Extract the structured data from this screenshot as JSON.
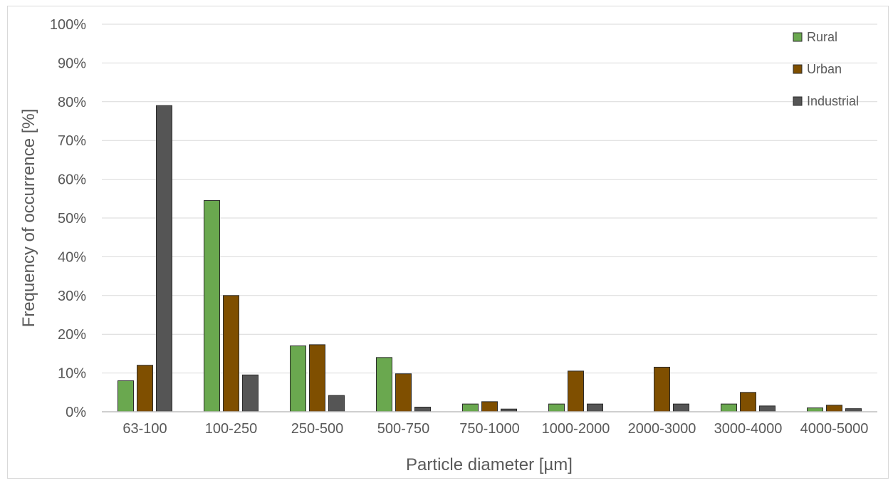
{
  "chart_data": {
    "type": "bar",
    "title": "",
    "xlabel": "Particle diameter [µm]",
    "ylabel": "Frequency of occurrence [%]",
    "ylim": [
      0,
      100
    ],
    "yticks": [
      "0%",
      "10%",
      "20%",
      "30%",
      "40%",
      "50%",
      "60%",
      "70%",
      "80%",
      "90%",
      "100%"
    ],
    "grid": true,
    "legend": "top-right",
    "categories": [
      "63-100",
      "100-250",
      "250-500",
      "500-750",
      "750-1000",
      "1000-2000",
      "2000-3000",
      "3000-4000",
      "4000-5000"
    ],
    "series": [
      {
        "name": "Rural",
        "color": "#6aa84f",
        "values": [
          8,
          54.5,
          17,
          14,
          2,
          2,
          0,
          2,
          1
        ]
      },
      {
        "name": "Urban",
        "color": "#7f4f00",
        "values": [
          12,
          30,
          17.3,
          9.8,
          2.6,
          10.5,
          11.5,
          5,
          1.7
        ]
      },
      {
        "name": "Industrial",
        "color": "#555555",
        "values": [
          79,
          9.5,
          4.2,
          1.2,
          0.7,
          2,
          2,
          1.5,
          0.8
        ]
      }
    ]
  }
}
